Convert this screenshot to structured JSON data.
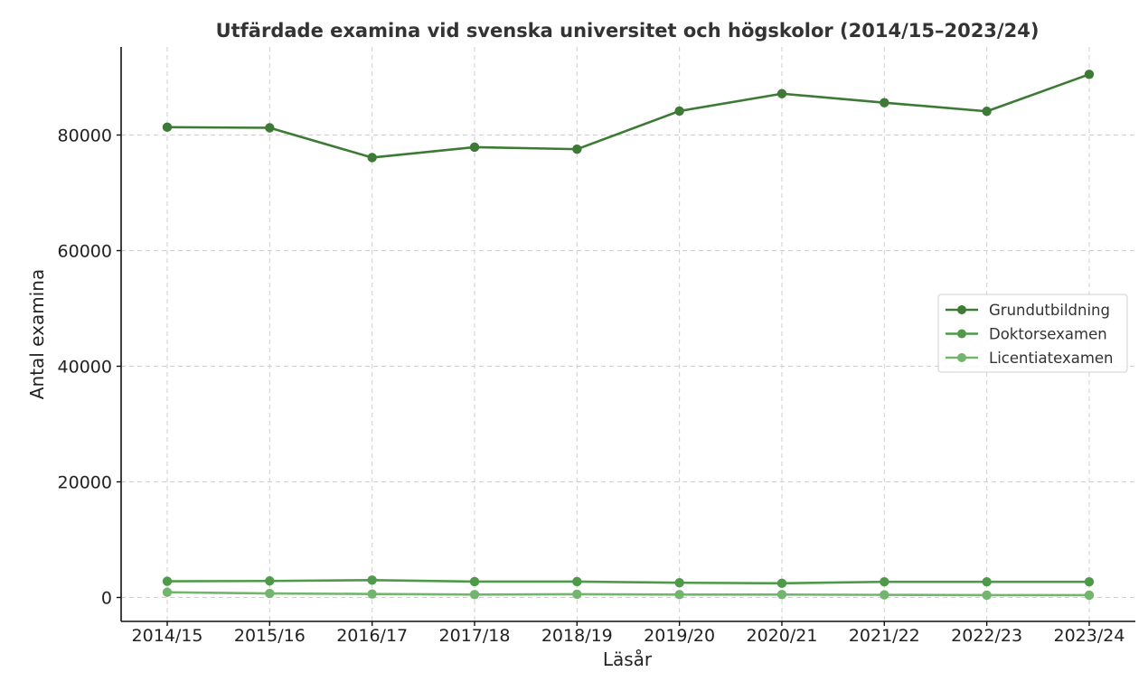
{
  "chart_data": {
    "type": "line",
    "title": "Utfärdade examina vid svenska universitet och högskolor (2014/15–2023/24)",
    "xlabel": "Läsår",
    "ylabel": "Antal examina",
    "categories": [
      "2014/15",
      "2015/16",
      "2016/17",
      "2017/18",
      "2018/19",
      "2019/20",
      "2020/21",
      "2021/22",
      "2022/23",
      "2023/24"
    ],
    "yticks": [
      0,
      20000,
      40000,
      60000,
      80000
    ],
    "ylim": [
      -4000,
      95000
    ],
    "grid": true,
    "legend_position": "center right",
    "series": [
      {
        "name": "Grundutbildning",
        "color": "#3d7a35",
        "values": [
          81350,
          81250,
          76100,
          77900,
          77550,
          84150,
          87150,
          85600,
          84100,
          90500
        ]
      },
      {
        "name": "Doktorsexamen",
        "color": "#4f9a4a",
        "values": [
          2800,
          2850,
          3000,
          2750,
          2750,
          2550,
          2450,
          2700,
          2700,
          2700
        ]
      },
      {
        "name": "Licentiatexamen",
        "color": "#72b56c",
        "values": [
          900,
          700,
          600,
          500,
          550,
          500,
          500,
          450,
          400,
          400
        ]
      }
    ]
  }
}
